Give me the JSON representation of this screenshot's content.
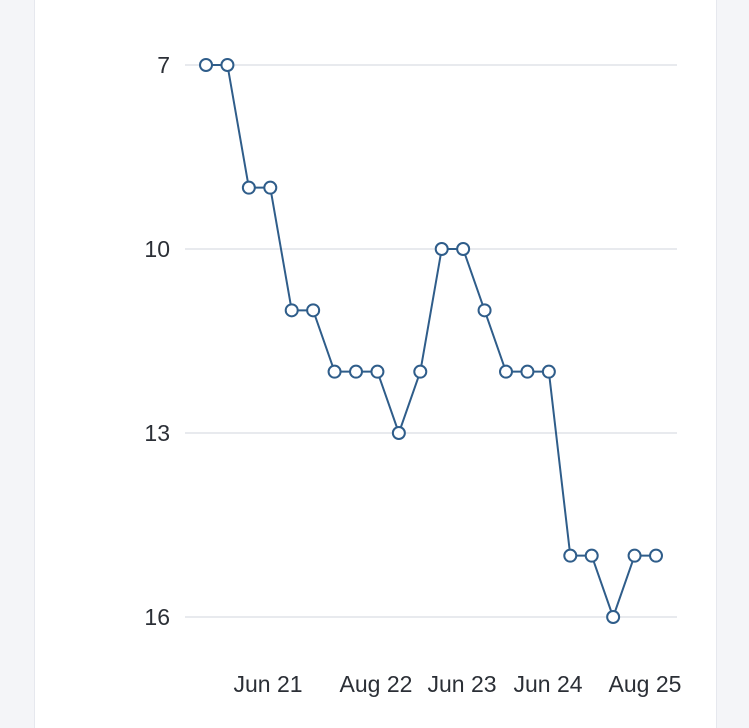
{
  "colors": {
    "series": "#2f5d8a",
    "grid": "#e1e3e8",
    "background": "#ffffff"
  },
  "chart_data": {
    "type": "line",
    "title": "",
    "xlabel": "",
    "ylabel": "",
    "y_axis_reversed": true,
    "ylim": [
      16,
      7
    ],
    "y_ticks": [
      7,
      10,
      13,
      16
    ],
    "x_ticks": [
      "Jun 21",
      "Aug 22",
      "Jun 23",
      "Jun 24",
      "Aug 25"
    ],
    "grid": true,
    "legend": "none",
    "series": [
      {
        "values": [
          7,
          7,
          9,
          9,
          11,
          11,
          12,
          12,
          12,
          13,
          12,
          10,
          10,
          11,
          12,
          12,
          12,
          15,
          15,
          16,
          15,
          15
        ]
      }
    ]
  }
}
